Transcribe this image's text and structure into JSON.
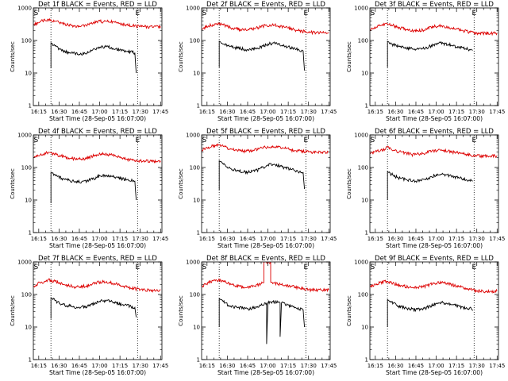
{
  "chart_data": [
    {
      "type": "line",
      "title": "Det 1f BLACK = Events, RED = LLD",
      "xlabel": "Start Time (28-Sep-05 16:07:00)",
      "ylabel": "Counts/sec",
      "yscale": "log",
      "ylim": [
        1,
        1000
      ],
      "xlim": [
        "16:11",
        "17:46"
      ],
      "x_ticks": [
        "16:15",
        "16:30",
        "16:45",
        "17:00",
        "17:15",
        "17:30",
        "17:45"
      ],
      "y_ticks": [
        "1",
        "10",
        "100",
        "1000"
      ],
      "markers": [
        {
          "label": "S",
          "x": "16:13"
        },
        {
          "label": "E",
          "x": "17:28"
        }
      ],
      "dotted_lines": [
        "16:24",
        "17:28"
      ],
      "series": [
        {
          "color": "#000000",
          "x": [
            "16:24",
            "16:25",
            "16:27",
            "16:32",
            "16:38",
            "16:45",
            "16:52",
            "17:00",
            "17:05",
            "17:12",
            "17:20",
            "17:26",
            "17:27"
          ],
          "values": [
            85,
            80,
            68,
            48,
            42,
            38,
            44,
            62,
            65,
            56,
            46,
            42,
            10
          ],
          "start_from": 14
        },
        {
          "color": "#dd0000",
          "x": [
            "16:11",
            "16:16",
            "16:22",
            "16:27",
            "16:34",
            "16:42",
            "16:50",
            "16:58",
            "17:05",
            "17:12",
            "17:20",
            "17:30",
            "17:40",
            "17:45"
          ],
          "values": [
            300,
            380,
            450,
            390,
            320,
            280,
            300,
            380,
            390,
            360,
            300,
            270,
            265,
            270
          ]
        }
      ]
    },
    {
      "type": "line",
      "title": "Det 2f BLACK = Events, RED = LLD",
      "xlabel": "Start Time (28-Sep-05 16:07:00)",
      "ylabel": "Counts/sec",
      "yscale": "log",
      "ylim": [
        1,
        1000
      ],
      "xlim": [
        "16:11",
        "17:46"
      ],
      "x_ticks": [
        "16:15",
        "16:30",
        "16:45",
        "17:00",
        "17:15",
        "17:30",
        "17:45"
      ],
      "y_ticks": [
        "1",
        "10",
        "100",
        "1000"
      ],
      "markers": [
        {
          "label": "S",
          "x": "16:13"
        },
        {
          "label": "E",
          "x": "17:28"
        }
      ],
      "dotted_lines": [
        "16:24",
        "17:28"
      ],
      "series": [
        {
          "color": "#000000",
          "x": [
            "16:24",
            "16:25",
            "16:27",
            "16:32",
            "16:38",
            "16:45",
            "16:52",
            "17:00",
            "17:05",
            "17:12",
            "17:20",
            "17:26",
            "17:27"
          ],
          "values": [
            95,
            90,
            78,
            65,
            58,
            52,
            56,
            78,
            82,
            68,
            55,
            48,
            12
          ],
          "start_from": 15
        },
        {
          "color": "#dd0000",
          "x": [
            "16:11",
            "16:16",
            "16:22",
            "16:27",
            "16:34",
            "16:42",
            "16:50",
            "16:58",
            "17:05",
            "17:12",
            "17:20",
            "17:30",
            "17:40",
            "17:45"
          ],
          "values": [
            230,
            280,
            330,
            300,
            240,
            210,
            230,
            290,
            300,
            260,
            210,
            180,
            170,
            175
          ]
        }
      ]
    },
    {
      "type": "line",
      "title": "Det 3f BLACK = Events, RED = LLD",
      "xlabel": "Start Time (28-Sep-05 16:07:00)",
      "ylabel": "Counts/sec",
      "yscale": "log",
      "ylim": [
        1,
        1000
      ],
      "xlim": [
        "16:11",
        "17:46"
      ],
      "x_ticks": [
        "16:15",
        "16:30",
        "16:45",
        "17:00",
        "17:15",
        "17:30",
        "17:45"
      ],
      "y_ticks": [
        "1",
        "10",
        "100",
        "1000"
      ],
      "markers": [
        {
          "label": "S",
          "x": "16:13"
        },
        {
          "label": "E",
          "x": "17:28"
        }
      ],
      "dotted_lines": [
        "16:24",
        "17:28"
      ],
      "series": [
        {
          "color": "#000000",
          "x": [
            "16:24",
            "16:25",
            "16:27",
            "16:32",
            "16:38",
            "16:45",
            "16:52",
            "17:00",
            "17:05",
            "17:12",
            "17:20",
            "17:26",
            "17:27"
          ],
          "values": [
            95,
            90,
            78,
            66,
            58,
            54,
            58,
            80,
            82,
            70,
            58,
            52,
            50
          ],
          "start_from": 15
        },
        {
          "color": "#dd0000",
          "x": [
            "16:11",
            "16:16",
            "16:22",
            "16:27",
            "16:34",
            "16:42",
            "16:50",
            "16:58",
            "17:05",
            "17:12",
            "17:20",
            "17:30",
            "17:40",
            "17:45"
          ],
          "values": [
            210,
            260,
            330,
            300,
            240,
            200,
            210,
            270,
            280,
            240,
            200,
            170,
            165,
            170
          ]
        }
      ]
    },
    {
      "type": "line",
      "title": "Det 4f BLACK = Events, RED = LLD",
      "xlabel": "Start Time (28-Sep-05 16:07:00)",
      "ylabel": "Counts/sec",
      "yscale": "log",
      "ylim": [
        1,
        1000
      ],
      "xlim": [
        "16:11",
        "17:46"
      ],
      "x_ticks": [
        "16:15",
        "16:30",
        "16:45",
        "17:00",
        "17:15",
        "17:30",
        "17:45"
      ],
      "y_ticks": [
        "1",
        "10",
        "100",
        "1000"
      ],
      "markers": [
        {
          "label": "S",
          "x": "16:13"
        },
        {
          "label": "E",
          "x": "17:28"
        }
      ],
      "dotted_lines": [
        "16:24",
        "17:28"
      ],
      "series": [
        {
          "color": "#000000",
          "x": [
            "16:24",
            "16:25",
            "16:27",
            "16:32",
            "16:38",
            "16:45",
            "16:52",
            "17:00",
            "17:05",
            "17:12",
            "17:20",
            "17:26",
            "17:27"
          ],
          "values": [
            70,
            68,
            60,
            46,
            40,
            36,
            40,
            55,
            58,
            50,
            42,
            38,
            10
          ],
          "start_from": 8
        },
        {
          "color": "#dd0000",
          "x": [
            "16:11",
            "16:16",
            "16:22",
            "16:27",
            "16:34",
            "16:42",
            "16:50",
            "16:58",
            "17:05",
            "17:12",
            "17:20",
            "17:30",
            "17:40",
            "17:45"
          ],
          "values": [
            200,
            240,
            290,
            260,
            210,
            180,
            190,
            250,
            260,
            220,
            180,
            160,
            155,
            160
          ]
        }
      ]
    },
    {
      "type": "line",
      "title": "Det 5f BLACK = Events, RED = LLD",
      "xlabel": "Start Time (28-Sep-05 16:07:00)",
      "ylabel": "Counts/sec",
      "yscale": "log",
      "ylim": [
        1,
        1000
      ],
      "xlim": [
        "16:11",
        "17:46"
      ],
      "x_ticks": [
        "16:15",
        "16:30",
        "16:45",
        "17:00",
        "17:15",
        "17:30",
        "17:45"
      ],
      "y_ticks": [
        "1",
        "10",
        "100",
        "1000"
      ],
      "markers": [
        {
          "label": "S",
          "x": "16:13"
        },
        {
          "label": "E",
          "x": "17:28"
        }
      ],
      "dotted_lines": [
        "16:24",
        "17:28"
      ],
      "series": [
        {
          "color": "#000000",
          "x": [
            "16:24",
            "16:25",
            "16:27",
            "16:32",
            "16:38",
            "16:45",
            "16:52",
            "17:00",
            "17:05",
            "17:12",
            "17:20",
            "17:26",
            "17:27"
          ],
          "values": [
            160,
            150,
            125,
            95,
            78,
            72,
            82,
            120,
            125,
            100,
            80,
            70,
            22
          ],
          "start_from": 20
        },
        {
          "color": "#dd0000",
          "x": [
            "16:11",
            "16:16",
            "16:22",
            "16:27",
            "16:34",
            "16:42",
            "16:50",
            "16:58",
            "17:05",
            "17:12",
            "17:20",
            "17:30",
            "17:40",
            "17:45"
          ],
          "values": [
            350,
            420,
            500,
            440,
            360,
            320,
            340,
            420,
            430,
            390,
            330,
            300,
            295,
            300
          ]
        }
      ]
    },
    {
      "type": "line",
      "title": "Det 6f BLACK = Events, RED = LLD",
      "xlabel": "Start Time (28-Sep-05 16:07:00)",
      "ylabel": "Counts/sec",
      "yscale": "log",
      "ylim": [
        1,
        1000
      ],
      "xlim": [
        "16:11",
        "17:46"
      ],
      "x_ticks": [
        "16:15",
        "16:30",
        "16:45",
        "17:00",
        "17:15",
        "17:30",
        "17:45"
      ],
      "y_ticks": [
        "1",
        "10",
        "100",
        "1000"
      ],
      "markers": [
        {
          "label": "S",
          "x": "16:13"
        },
        {
          "label": "E",
          "x": "17:28"
        }
      ],
      "dotted_lines": [
        "16:24",
        "17:28"
      ],
      "series": [
        {
          "color": "#000000",
          "x": [
            "16:24",
            "16:25",
            "16:27",
            "16:32",
            "16:38",
            "16:45",
            "16:52",
            "17:00",
            "17:05",
            "17:12",
            "17:20",
            "17:26",
            "17:27"
          ],
          "values": [
            75,
            70,
            62,
            48,
            42,
            38,
            42,
            60,
            62,
            54,
            45,
            40,
            38
          ],
          "start_from": 10
        },
        {
          "color": "#dd0000",
          "x": [
            "16:11",
            "16:16",
            "16:22",
            "16:24",
            "16:27",
            "16:34",
            "16:42",
            "16:50",
            "16:58",
            "17:05",
            "17:12",
            "17:20",
            "17:30",
            "17:40",
            "17:45"
          ],
          "values": [
            260,
            310,
            360,
            450,
            350,
            300,
            250,
            270,
            330,
            340,
            300,
            260,
            230,
            225,
            230
          ]
        }
      ]
    },
    {
      "type": "line",
      "title": "Det 7f BLACK = Events, RED = LLD",
      "xlabel": "Start Time (28-Sep-05 16:07:00)",
      "ylabel": "Counts/sec",
      "yscale": "log",
      "ylim": [
        1,
        1000
      ],
      "xlim": [
        "16:11",
        "17:46"
      ],
      "x_ticks": [
        "16:15",
        "16:30",
        "16:45",
        "17:00",
        "17:15",
        "17:30",
        "17:45"
      ],
      "y_ticks": [
        "1",
        "10",
        "100",
        "1000"
      ],
      "markers": [
        {
          "label": "S",
          "x": "16:13"
        },
        {
          "label": "E",
          "x": "17:28"
        }
      ],
      "dotted_lines": [
        "16:24",
        "17:28"
      ],
      "series": [
        {
          "color": "#000000",
          "x": [
            "16:24",
            "16:25",
            "16:27",
            "16:32",
            "16:38",
            "16:45",
            "16:52",
            "17:00",
            "17:05",
            "17:12",
            "17:20",
            "17:26",
            "17:27"
          ],
          "values": [
            80,
            75,
            65,
            50,
            44,
            40,
            44,
            62,
            65,
            56,
            46,
            40,
            20
          ],
          "start_from": 18
        },
        {
          "color": "#dd0000",
          "x": [
            "16:11",
            "16:16",
            "16:22",
            "16:27",
            "16:34",
            "16:42",
            "16:50",
            "16:58",
            "17:05",
            "17:12",
            "17:20",
            "17:30",
            "17:40",
            "17:45"
          ],
          "values": [
            180,
            230,
            280,
            250,
            200,
            170,
            180,
            240,
            250,
            210,
            170,
            140,
            135,
            140
          ]
        }
      ]
    },
    {
      "type": "line",
      "title": "Det 8f BLACK = Events, RED = LLD",
      "xlabel": "Start Time (28-Sep-05 16:07:00)",
      "ylabel": "Counts/sec",
      "yscale": "log",
      "ylim": [
        1,
        1000
      ],
      "xlim": [
        "16:11",
        "17:46"
      ],
      "x_ticks": [
        "16:15",
        "16:30",
        "16:45",
        "17:00",
        "17:15",
        "17:30",
        "17:45"
      ],
      "y_ticks": [
        "1",
        "10",
        "100",
        "1000"
      ],
      "markers": [
        {
          "label": "S",
          "x": "16:13"
        },
        {
          "label": "E",
          "x": "17:28"
        }
      ],
      "dotted_lines": [
        "16:24",
        "17:28"
      ],
      "series": [
        {
          "color": "#000000",
          "x": [
            "16:24",
            "16:25",
            "16:27",
            "16:32",
            "16:38",
            "16:45",
            "16:52",
            "16:59",
            "16:59",
            "17:00",
            "17:05",
            "17:09",
            "17:09",
            "17:10",
            "17:15",
            "17:20",
            "17:26",
            "17:27"
          ],
          "values": [
            75,
            70,
            60,
            45,
            40,
            36,
            40,
            55,
            3,
            55,
            60,
            55,
            5,
            55,
            48,
            40,
            34,
            10
          ],
          "start_from": 10
        },
        {
          "color": "#dd0000",
          "x": [
            "16:11",
            "16:16",
            "16:22",
            "16:27",
            "16:34",
            "16:42",
            "16:50",
            "16:56",
            "16:57",
            "16:57",
            "16:58",
            "17:02",
            "17:02",
            "17:03",
            "17:10",
            "17:20",
            "17:30",
            "17:40",
            "17:45"
          ],
          "values": [
            180,
            230,
            280,
            250,
            200,
            170,
            180,
            230,
            230,
            1000,
            1000,
            1000,
            240,
            240,
            200,
            170,
            140,
            135,
            140
          ]
        }
      ]
    },
    {
      "type": "line",
      "title": "Det 9f BLACK = Events, RED = LLD",
      "xlabel": "Start Time (28-Sep-05 16:07:00)",
      "ylabel": "Counts/sec",
      "yscale": "log",
      "ylim": [
        1,
        1000
      ],
      "xlim": [
        "16:11",
        "17:46"
      ],
      "x_ticks": [
        "16:15",
        "16:30",
        "16:45",
        "17:00",
        "17:15",
        "17:30",
        "17:45"
      ],
      "y_ticks": [
        "1",
        "10",
        "100",
        "1000"
      ],
      "markers": [
        {
          "label": "S",
          "x": "16:13"
        },
        {
          "label": "E",
          "x": "17:28"
        }
      ],
      "dotted_lines": [
        "16:24",
        "17:28"
      ],
      "series": [
        {
          "color": "#000000",
          "x": [
            "16:24",
            "16:25",
            "16:27",
            "16:32",
            "16:38",
            "16:45",
            "16:52",
            "17:00",
            "17:05",
            "17:12",
            "17:20",
            "17:26",
            "17:27"
          ],
          "values": [
            70,
            65,
            58,
            44,
            38,
            34,
            38,
            54,
            56,
            48,
            40,
            36,
            32
          ],
          "start_from": 10
        },
        {
          "color": "#dd0000",
          "x": [
            "16:11",
            "16:16",
            "16:22",
            "16:27",
            "16:34",
            "16:42",
            "16:50",
            "16:58",
            "17:05",
            "17:12",
            "17:20",
            "17:30",
            "17:40",
            "17:45"
          ],
          "values": [
            170,
            210,
            260,
            230,
            190,
            160,
            170,
            220,
            230,
            200,
            160,
            130,
            125,
            130
          ]
        }
      ]
    }
  ]
}
